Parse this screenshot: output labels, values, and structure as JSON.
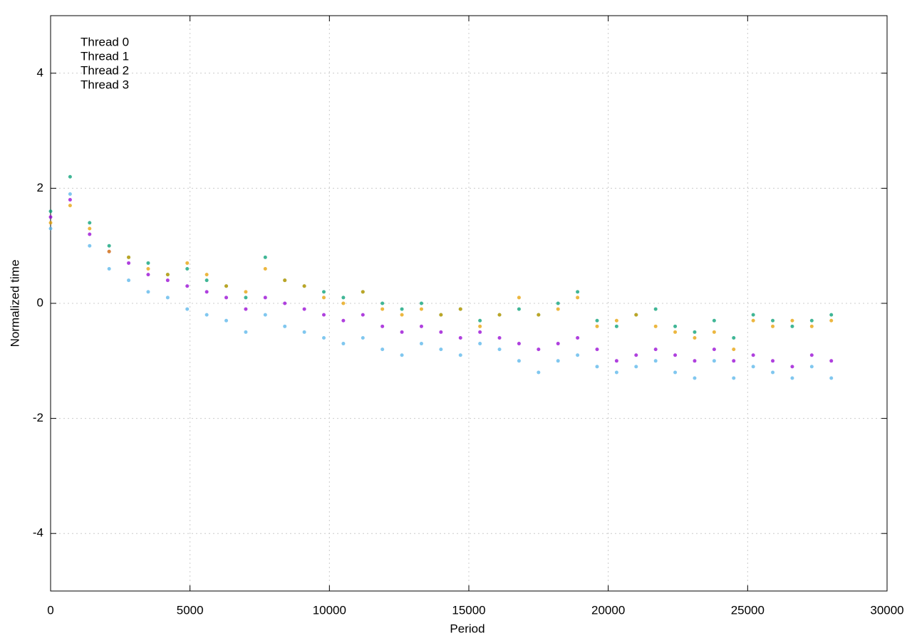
{
  "chart_data": {
    "type": "scatter",
    "xlabel": "Period",
    "ylabel": "Normalized time",
    "x": [
      0,
      700,
      1400,
      2100,
      2800,
      3500,
      4200,
      4900,
      5600,
      6300,
      7000,
      7700,
      8400,
      9100,
      9800,
      10500,
      11200,
      11900,
      12600,
      13300,
      14000,
      14700,
      15400,
      16100,
      16800,
      17500,
      18200,
      18900,
      19600,
      20300,
      21000,
      21700,
      22400,
      23100,
      23800,
      24500,
      25200,
      25900,
      26600,
      27300,
      28000
    ],
    "series": [
      {
        "name": "Thread 0",
        "color": "#9400d3",
        "values": [
          1.5,
          1.8,
          1.2,
          0.9,
          0.7,
          0.5,
          0.4,
          0.3,
          0.2,
          0.1,
          -0.1,
          0.1,
          0.0,
          -0.1,
          -0.2,
          -0.3,
          -0.2,
          -0.4,
          -0.5,
          -0.4,
          -0.5,
          -0.6,
          -0.5,
          -0.6,
          -0.7,
          -0.8,
          -0.7,
          -0.6,
          -0.8,
          -1.0,
          -0.9,
          -0.8,
          -0.9,
          -1.0,
          -0.8,
          -1.0,
          -0.9,
          -1.0,
          -1.1,
          -0.9,
          -1.0
        ]
      },
      {
        "name": "Thread 1",
        "color": "#009e73",
        "values": [
          1.6,
          2.2,
          1.4,
          1.0,
          0.8,
          0.7,
          0.5,
          0.6,
          0.4,
          0.3,
          0.1,
          0.8,
          0.4,
          0.3,
          0.2,
          0.1,
          0.2,
          0.0,
          -0.1,
          0.0,
          -0.2,
          -0.1,
          -0.3,
          -0.2,
          -0.1,
          -0.2,
          0.0,
          0.2,
          -0.3,
          -0.4,
          -0.2,
          -0.1,
          -0.4,
          -0.5,
          -0.3,
          -0.6,
          -0.2,
          -0.3,
          -0.4,
          -0.3,
          -0.2
        ]
      },
      {
        "name": "Thread 2",
        "color": "#56b4e9",
        "values": [
          1.3,
          1.9,
          1.0,
          0.6,
          0.4,
          0.2,
          0.1,
          -0.1,
          -0.2,
          -0.3,
          -0.5,
          -0.2,
          -0.4,
          -0.5,
          -0.6,
          -0.7,
          -0.6,
          -0.8,
          -0.9,
          -0.7,
          -0.8,
          -0.9,
          -0.7,
          -0.8,
          -1.0,
          -1.2,
          -1.0,
          -0.9,
          -1.1,
          -1.2,
          -1.1,
          -1.0,
          -1.2,
          -1.3,
          -1.0,
          -1.3,
          -1.1,
          -1.2,
          -1.3,
          -1.1,
          -1.3
        ]
      },
      {
        "name": "Thread 3",
        "color": "#e69f00",
        "values": [
          1.4,
          1.7,
          1.3,
          0.9,
          0.8,
          0.6,
          0.5,
          0.7,
          0.5,
          0.3,
          0.2,
          0.6,
          0.4,
          0.3,
          0.1,
          0.0,
          0.2,
          -0.1,
          -0.2,
          -0.1,
          -0.2,
          -0.1,
          -0.4,
          -0.2,
          0.1,
          -0.2,
          -0.1,
          0.1,
          -0.4,
          -0.3,
          -0.2,
          -0.4,
          -0.5,
          -0.6,
          -0.5,
          -0.8,
          -0.3,
          -0.4,
          -0.3,
          -0.4,
          -0.3
        ]
      }
    ],
    "xlim": [
      0,
      30000
    ],
    "xticks": [
      0,
      5000,
      10000,
      15000,
      20000,
      25000,
      30000
    ],
    "ylim": [
      -5,
      5
    ],
    "yticks": [
      -4,
      -2,
      0,
      2,
      4
    ],
    "grid": true,
    "legend": "top-left"
  }
}
